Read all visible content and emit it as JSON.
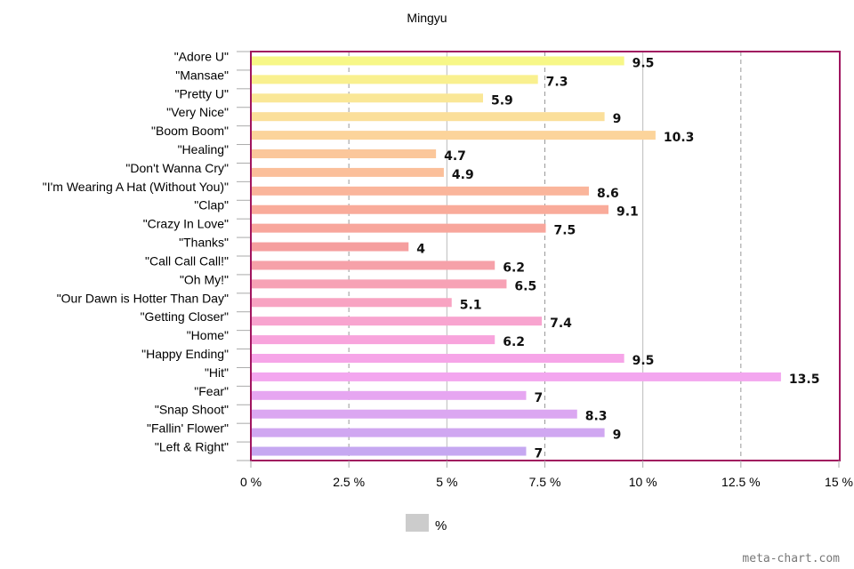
{
  "chart_data": {
    "type": "bar",
    "orientation": "horizontal",
    "title": "Mingyu",
    "categories": [
      "\"Adore U\"",
      "\"Mansae\"",
      "\"Pretty U\"",
      "\"Very Nice\"",
      "\"Boom Boom\"",
      "\"Healing\"",
      "\"Don't Wanna Cry\"",
      "\"I'm Wearing A Hat (Without You)\"",
      "\"Clap\"",
      "\"Crazy In Love\"",
      "\"Thanks\"",
      "\"Call Call Call!\"",
      "\"Oh My!\"",
      "\"Our Dawn is Hotter Than Day\"",
      "\"Getting Closer\"",
      "\"Home\"",
      "\"Happy Ending\"",
      "\"Hit\"",
      "\"Fear\"",
      "\"Snap Shoot\"",
      "\"Fallin' Flower\"",
      "\"Left & Right\""
    ],
    "values": [
      9.5,
      7.3,
      5.9,
      9,
      10.3,
      4.7,
      4.9,
      8.6,
      9.1,
      7.5,
      4,
      6.2,
      6.5,
      5.1,
      7.4,
      6.2,
      9.5,
      13.5,
      7,
      8.3,
      9,
      7
    ],
    "value_labels": [
      "9.5",
      "7.3",
      "5.9",
      "9",
      "10.3",
      "4.7",
      "4.9",
      "8.6",
      "9.1",
      "7.5",
      "4",
      "6.2",
      "6.5",
      "5.1",
      "7.4",
      "6.2",
      "9.5",
      "13.5",
      "7",
      "8.3",
      "9",
      "7"
    ],
    "colors": [
      "#f7f787",
      "#f9f08f",
      "#fae797",
      "#fbdf9a",
      "#fcd49b",
      "#fbc79b",
      "#fbbf9a",
      "#fab59b",
      "#f9ab9a",
      "#f8a69c",
      "#f59e9e",
      "#f6a1a9",
      "#f7a2b5",
      "#f8a3c2",
      "#f8a4cf",
      "#f8a4dc",
      "#f6a5e8",
      "#f3a6ef",
      "#e6a6f1",
      "#dba7f1",
      "#d0a7f1",
      "#c6a8f1"
    ],
    "xlim": [
      0,
      15
    ],
    "xticks": [
      "0 %",
      "2.5 %",
      "5 %",
      "7.5 %",
      "10 %",
      "12.5 %",
      "15 %"
    ],
    "xtick_values": [
      0,
      2.5,
      5,
      7.5,
      10,
      12.5,
      15
    ],
    "legend": {
      "label": "%",
      "color": "#cccccc",
      "position": "bottom"
    },
    "grid": true,
    "frame_color": "#a0155f"
  },
  "watermark": "meta-chart.com"
}
